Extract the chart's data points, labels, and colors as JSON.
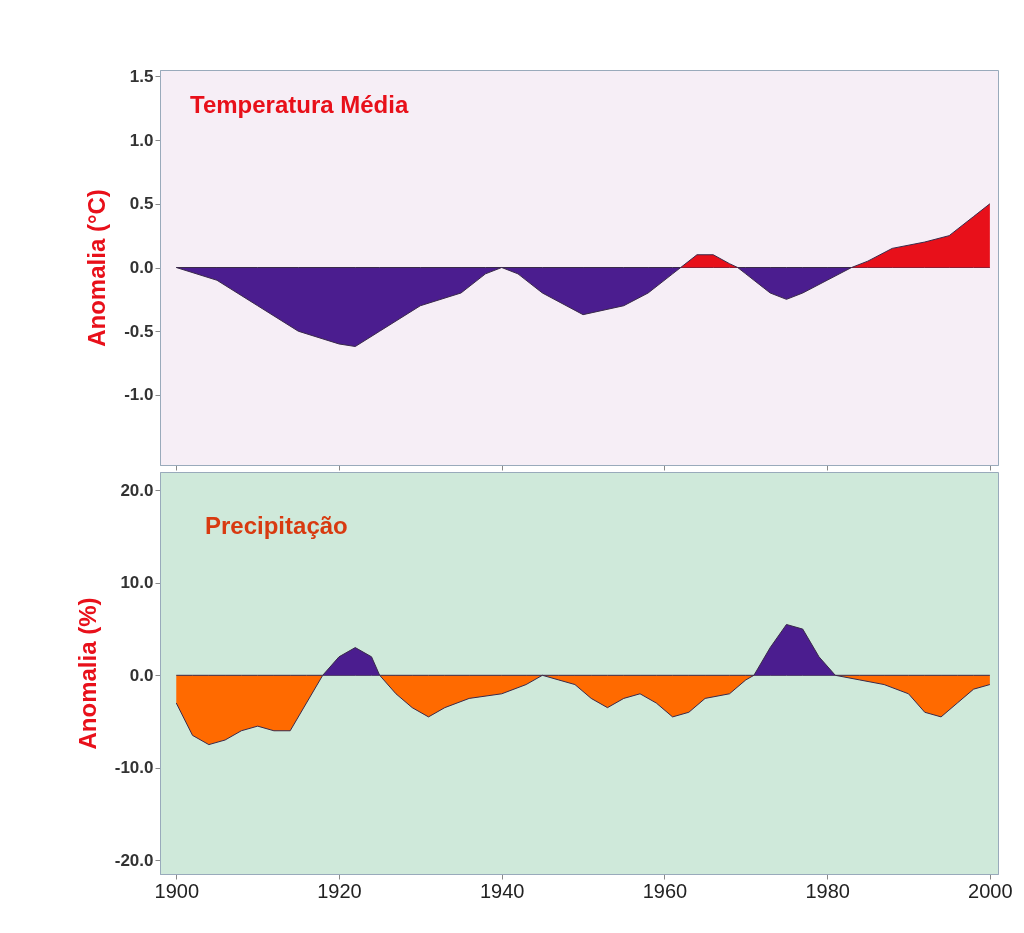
{
  "chart_data": [
    {
      "type": "area",
      "title": "Temperatura Média",
      "ylabel": "Anomalia (°C)",
      "tick_labels": "y",
      "grid": false,
      "x": [
        1900,
        1905,
        1910,
        1915,
        1920,
        1922,
        1925,
        1930,
        1935,
        1938,
        1940,
        1942,
        1945,
        1950,
        1955,
        1958,
        1961,
        1962,
        1964,
        1966,
        1968,
        1969,
        1970,
        1973,
        1975,
        1977,
        1980,
        1983,
        1985,
        1988,
        1992,
        1995,
        1998,
        2000
      ],
      "series": [
        {
          "color": "#4b1d8f",
          "values": [
            0,
            -0.1,
            -0.3,
            -0.5,
            -0.6,
            -0.62,
            -0.5,
            -0.3,
            -0.2,
            -0.05,
            0,
            -0.05,
            -0.2,
            -0.37,
            -0.3,
            -0.2,
            -0.05,
            0,
            0,
            0,
            0,
            0,
            -0.05,
            -0.2,
            -0.25,
            -0.2,
            -0.1,
            0,
            0,
            0,
            0,
            0,
            0,
            0
          ]
        },
        {
          "color": "#e8101a",
          "values": [
            0,
            0,
            0,
            0,
            0,
            0,
            0,
            0,
            0,
            0,
            0,
            0,
            0,
            0,
            0,
            0,
            0,
            0,
            0.1,
            0.1,
            0.03,
            0,
            0,
            0,
            0,
            0,
            0,
            0,
            0.05,
            0.15,
            0.2,
            0.25,
            0.4,
            0.5
          ]
        }
      ],
      "xlim": [
        1898,
        2001
      ],
      "xticks": [
        1900,
        1920,
        1940,
        1960,
        1980,
        2000
      ],
      "ylim": [
        -1.55,
        1.55
      ],
      "yticks": [
        {
          "value": 1.5,
          "label": "1.5"
        },
        {
          "value": 1,
          "label": "1.0"
        },
        {
          "value": 0.5,
          "label": "0.5"
        },
        {
          "value": 0,
          "label": "0.0"
        },
        {
          "value": -0.5,
          "label": "-0.5"
        },
        {
          "value": -1,
          "label": "-1.0"
        }
      ]
    },
    {
      "type": "area",
      "title": "Precipitação",
      "ylabel": "Anomalia (%)",
      "grid": false,
      "x": [
        1900,
        1902,
        1904,
        1906,
        1908,
        1910,
        1912,
        1914,
        1916,
        1918,
        1920,
        1922,
        1924,
        1925,
        1927,
        1929,
        1931,
        1933,
        1936,
        1940,
        1943,
        1945,
        1947,
        1949,
        1951,
        1953,
        1955,
        1957,
        1959,
        1961,
        1963,
        1965,
        1968,
        1970,
        1971,
        1973,
        1975,
        1977,
        1979,
        1981,
        1984,
        1987,
        1990,
        1992,
        1994,
        1996,
        1998,
        2000
      ],
      "series": [
        {
          "color": "#ff6a00",
          "values": [
            -3,
            -6.5,
            -7.5,
            -7,
            -6,
            -5.5,
            -6,
            -6,
            -3,
            0,
            0,
            0,
            0,
            0,
            -2,
            -3.5,
            -4.5,
            -3.5,
            -2.5,
            -2,
            -1,
            0,
            -0.5,
            -1,
            -2.5,
            -3.5,
            -2.5,
            -2,
            -3,
            -4.5,
            -4,
            -2.5,
            -2,
            -0.5,
            0,
            0,
            0,
            0,
            0,
            0,
            -0.5,
            -1,
            -2,
            -4,
            -4.5,
            -3,
            -1.5,
            -1
          ]
        },
        {
          "color": "#4b1d8f",
          "values": [
            0,
            0,
            0,
            0,
            0,
            0,
            0,
            0,
            0,
            0,
            2,
            3,
            2,
            0,
            0,
            0,
            0,
            0,
            0,
            0,
            0,
            0,
            0,
            0,
            0,
            0,
            0,
            0,
            0,
            0,
            0,
            0,
            0,
            0,
            0,
            3,
            5.5,
            5,
            2,
            0,
            0,
            0,
            0,
            0,
            0,
            0,
            0,
            0
          ]
        }
      ],
      "xlim": [
        1898,
        2001
      ],
      "xticks": [
        1900,
        1920,
        1940,
        1960,
        1980,
        2000
      ],
      "ylim": [
        -21.5,
        22
      ],
      "yticks": [
        {
          "value": 20,
          "label": "20.0"
        },
        {
          "value": 10,
          "label": "10.0"
        },
        {
          "value": 0,
          "label": "0.0"
        },
        {
          "value": -10,
          "label": "-10.0"
        },
        {
          "value": -20,
          "label": "-20.0"
        }
      ]
    }
  ]
}
